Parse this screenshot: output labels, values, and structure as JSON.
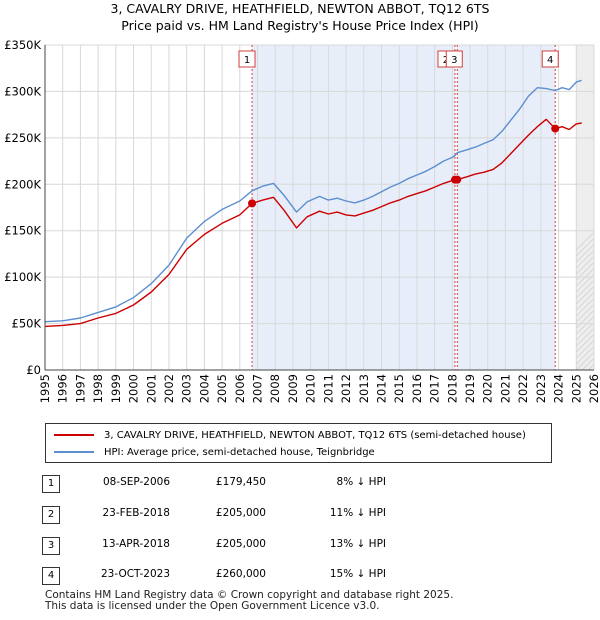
{
  "header": {
    "title_line1": "3, CAVALRY DRIVE, HEATHFIELD, NEWTON ABBOT, TQ12 6TS",
    "title_line2": "Price paid vs. HM Land Registry's House Price Index (HPI)"
  },
  "chart_data": {
    "type": "line",
    "title": "Price paid vs. HM Land Registry's House Price Index (HPI)",
    "xlabel": "",
    "ylabel": "",
    "xlim": [
      1995,
      2026
    ],
    "ylim": [
      0,
      350000
    ],
    "x_ticks": [
      1995,
      1996,
      1997,
      1998,
      1999,
      2000,
      2001,
      2002,
      2003,
      2004,
      2005,
      2006,
      2007,
      2008,
      2009,
      2010,
      2011,
      2012,
      2013,
      2014,
      2015,
      2016,
      2017,
      2018,
      2019,
      2020,
      2021,
      2022,
      2023,
      2024,
      2025,
      2026
    ],
    "y_ticks": [
      {
        "value": 0,
        "label": "£0"
      },
      {
        "value": 50000,
        "label": "£50K"
      },
      {
        "value": 100000,
        "label": "£100K"
      },
      {
        "value": 150000,
        "label": "£150K"
      },
      {
        "value": 200000,
        "label": "£200K"
      },
      {
        "value": 250000,
        "label": "£250K"
      },
      {
        "value": 300000,
        "label": "£300K"
      },
      {
        "value": 350000,
        "label": "£350K"
      }
    ],
    "shaded_periods": [
      [
        2006.69,
        2018.15
      ],
      [
        2018.28,
        2023.81
      ]
    ],
    "projection_start": 2025.0,
    "series": [
      {
        "name": "3, CAVALRY DRIVE, HEATHFIELD, NEWTON ABBOT, TQ12 6TS (semi-detached house)",
        "color": "#cc0000",
        "x": [
          1995.0,
          1996.0,
          1997.0,
          1998.0,
          1999.0,
          2000.0,
          2001.0,
          2002.0,
          2003.0,
          2004.0,
          2005.0,
          2006.0,
          2006.69,
          2007.3,
          2007.9,
          2008.5,
          2009.2,
          2009.8,
          2010.5,
          2011.0,
          2011.5,
          2012.0,
          2012.5,
          2013.0,
          2013.5,
          2014.0,
          2014.5,
          2015.0,
          2015.5,
          2016.0,
          2016.5,
          2017.0,
          2017.5,
          2018.0,
          2018.15,
          2018.28,
          2018.8,
          2019.3,
          2019.8,
          2020.3,
          2020.8,
          2021.3,
          2021.8,
          2022.3,
          2022.8,
          2023.3,
          2023.81,
          2024.2,
          2024.6,
          2025.0,
          2025.3
        ],
        "y": [
          47000,
          48000,
          50000,
          56000,
          61000,
          70000,
          84000,
          103000,
          130000,
          146000,
          158000,
          167000,
          179450,
          183000,
          186000,
          172000,
          153000,
          165000,
          171000,
          168000,
          170000,
          167000,
          166000,
          169000,
          172000,
          176000,
          180000,
          183000,
          187000,
          190000,
          193000,
          197000,
          201000,
          204000,
          205000,
          205000,
          208000,
          211000,
          213000,
          216000,
          223000,
          233000,
          243000,
          253000,
          262000,
          270000,
          260000,
          262000,
          259000,
          265000,
          266000
        ]
      },
      {
        "name": "HPI: Average price, semi-detached house, Teignbridge",
        "color": "#5b8fd0",
        "x": [
          1995.0,
          1996.0,
          1997.0,
          1998.0,
          1999.0,
          2000.0,
          2001.0,
          2002.0,
          2003.0,
          2004.0,
          2005.0,
          2006.0,
          2006.69,
          2007.3,
          2007.9,
          2008.5,
          2009.2,
          2009.8,
          2010.5,
          2011.0,
          2011.5,
          2012.0,
          2012.5,
          2013.0,
          2013.5,
          2014.0,
          2014.5,
          2015.0,
          2015.5,
          2016.0,
          2016.5,
          2017.0,
          2017.5,
          2018.0,
          2018.15,
          2018.28,
          2018.8,
          2019.3,
          2019.8,
          2020.3,
          2020.8,
          2021.3,
          2021.8,
          2022.3,
          2022.8,
          2023.3,
          2023.81,
          2024.2,
          2024.6,
          2025.0,
          2025.3
        ],
        "y": [
          52000,
          53000,
          56000,
          62000,
          68000,
          78000,
          93000,
          113000,
          142000,
          160000,
          173000,
          182000,
          193000,
          198000,
          201000,
          188000,
          170000,
          181000,
          187000,
          183000,
          185000,
          182000,
          180000,
          183000,
          187000,
          192000,
          197000,
          201000,
          206000,
          210000,
          214000,
          219000,
          225000,
          229000,
          231000,
          234000,
          237000,
          240000,
          244000,
          248000,
          257000,
          269000,
          281000,
          295000,
          304000,
          303000,
          301000,
          304000,
          302000,
          310000,
          312000
        ]
      }
    ],
    "sales": [
      {
        "label": "1",
        "x": 2006.69,
        "y": 179450
      },
      {
        "label": "2",
        "x": 2018.15,
        "y": 205000
      },
      {
        "label": "3",
        "x": 2018.28,
        "y": 205000
      },
      {
        "label": "4",
        "x": 2023.81,
        "y": 260000
      }
    ]
  },
  "legend": {
    "property_label": "3, CAVALRY DRIVE, HEATHFIELD, NEWTON ABBOT, TQ12 6TS (semi-detached house)",
    "hpi_label": "HPI: Average price, semi-detached house, Teignbridge",
    "property_color": "#cc0000",
    "hpi_color": "#5b8fd0"
  },
  "transactions": [
    {
      "num": "1",
      "date": "08-SEP-2006",
      "price": "£179,450",
      "hpi": "8% ↓ HPI"
    },
    {
      "num": "2",
      "date": "23-FEB-2018",
      "price": "£205,000",
      "hpi": "11% ↓ HPI"
    },
    {
      "num": "3",
      "date": "13-APR-2018",
      "price": "£205,000",
      "hpi": "13% ↓ HPI"
    },
    {
      "num": "4",
      "date": "23-OCT-2023",
      "price": "£260,000",
      "hpi": "15% ↓ HPI"
    }
  ],
  "footer": {
    "line1": "Contains HM Land Registry data © Crown copyright and database right 2025.",
    "line2": "This data is licensed under the Open Government Licence v3.0."
  }
}
